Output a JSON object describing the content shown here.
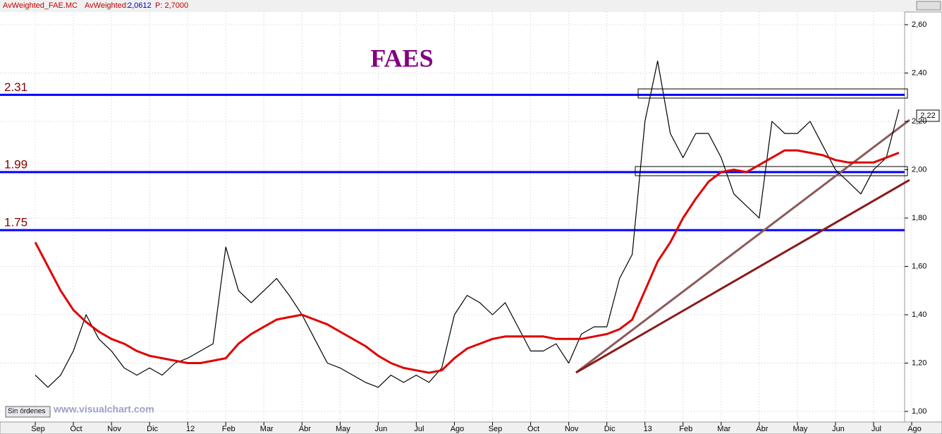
{
  "header": {
    "symbol": "AvWeighted_FAE.MC",
    "indicator": "AvWeighted:",
    "indicator_value": "2,0612",
    "price": "P: 2,7000"
  },
  "footer": {
    "status": "Sin órdenes",
    "site": "www.visualchart.com"
  },
  "last_price_label": "2,22",
  "chart_data": {
    "type": "line",
    "title": "FAES",
    "categories": [
      "Sep",
      null,
      null,
      "Oct",
      null,
      null,
      "Nov",
      null,
      null,
      "Dic",
      null,
      null,
      "12",
      null,
      null,
      "Feb",
      null,
      null,
      "Mar",
      null,
      null,
      "Abr",
      null,
      null,
      "May",
      null,
      null,
      "Jun",
      null,
      null,
      "Jul",
      null,
      null,
      "Ago",
      null,
      null,
      "Sep",
      null,
      null,
      "Oct",
      null,
      null,
      "Nov",
      null,
      null,
      "Dic",
      null,
      null,
      "13",
      null,
      null,
      "Feb",
      null,
      null,
      "Mar",
      null,
      null,
      "Abr",
      null,
      null,
      "May",
      null,
      null,
      "Jun",
      null,
      null,
      "Jul",
      null,
      null,
      "Ago"
    ],
    "series": [
      {
        "name": "AvWeighted_FAE.MC",
        "color": "#000000",
        "values": [
          1.15,
          1.1,
          1.15,
          1.25,
          1.4,
          1.3,
          1.25,
          1.18,
          1.15,
          1.18,
          1.15,
          1.2,
          1.22,
          1.25,
          1.28,
          1.68,
          1.5,
          1.45,
          1.5,
          1.55,
          1.48,
          1.4,
          1.3,
          1.2,
          1.18,
          1.15,
          1.12,
          1.1,
          1.15,
          1.12,
          1.15,
          1.12,
          1.18,
          1.4,
          1.48,
          1.45,
          1.4,
          1.45,
          1.35,
          1.25,
          1.25,
          1.28,
          1.2,
          1.32,
          1.35,
          1.35,
          1.55,
          1.65,
          2.2,
          2.45,
          2.15,
          2.05,
          2.15,
          2.15,
          2.05,
          1.9,
          1.85,
          1.8,
          2.2,
          2.15,
          2.15,
          2.2,
          2.1,
          2.0,
          1.95,
          1.9,
          2.0,
          2.05,
          2.25,
          null
        ]
      },
      {
        "name": "AvWeighted",
        "color": "#e00000",
        "values": [
          1.7,
          1.6,
          1.5,
          1.42,
          1.37,
          1.33,
          1.3,
          1.28,
          1.25,
          1.23,
          1.22,
          1.21,
          1.2,
          1.2,
          1.21,
          1.22,
          1.28,
          1.32,
          1.35,
          1.38,
          1.39,
          1.4,
          1.38,
          1.36,
          1.33,
          1.3,
          1.27,
          1.23,
          1.2,
          1.18,
          1.17,
          1.16,
          1.17,
          1.22,
          1.26,
          1.28,
          1.3,
          1.31,
          1.31,
          1.31,
          1.31,
          1.3,
          1.3,
          1.3,
          1.31,
          1.32,
          1.34,
          1.38,
          1.5,
          1.62,
          1.7,
          1.8,
          1.88,
          1.95,
          1.99,
          2.0,
          1.99,
          2.02,
          2.05,
          2.08,
          2.08,
          2.07,
          2.06,
          2.04,
          2.03,
          2.03,
          2.03,
          2.05,
          2.07,
          null
        ]
      }
    ],
    "hlines": [
      {
        "value": 2.31,
        "color": "#0000ff"
      },
      {
        "value": 1.99,
        "color": "#0000ff"
      },
      {
        "value": 1.75,
        "color": "#0000ff"
      }
    ],
    "ylim": [
      1.0,
      2.6
    ],
    "yticks": [
      {
        "value": 1.0,
        "label": "1,00"
      },
      {
        "value": 1.2,
        "label": "1,20"
      },
      {
        "value": 1.4,
        "label": "1,40"
      },
      {
        "value": 1.6,
        "label": "1,60"
      },
      {
        "value": 1.8,
        "label": "1,80"
      },
      {
        "value": 2.0,
        "label": "2,00"
      },
      {
        "value": 2.2,
        "label": "2,20"
      },
      {
        "value": 2.4,
        "label": "2,40"
      },
      {
        "value": 2.6,
        "label": "2,60"
      }
    ],
    "grid": true
  }
}
